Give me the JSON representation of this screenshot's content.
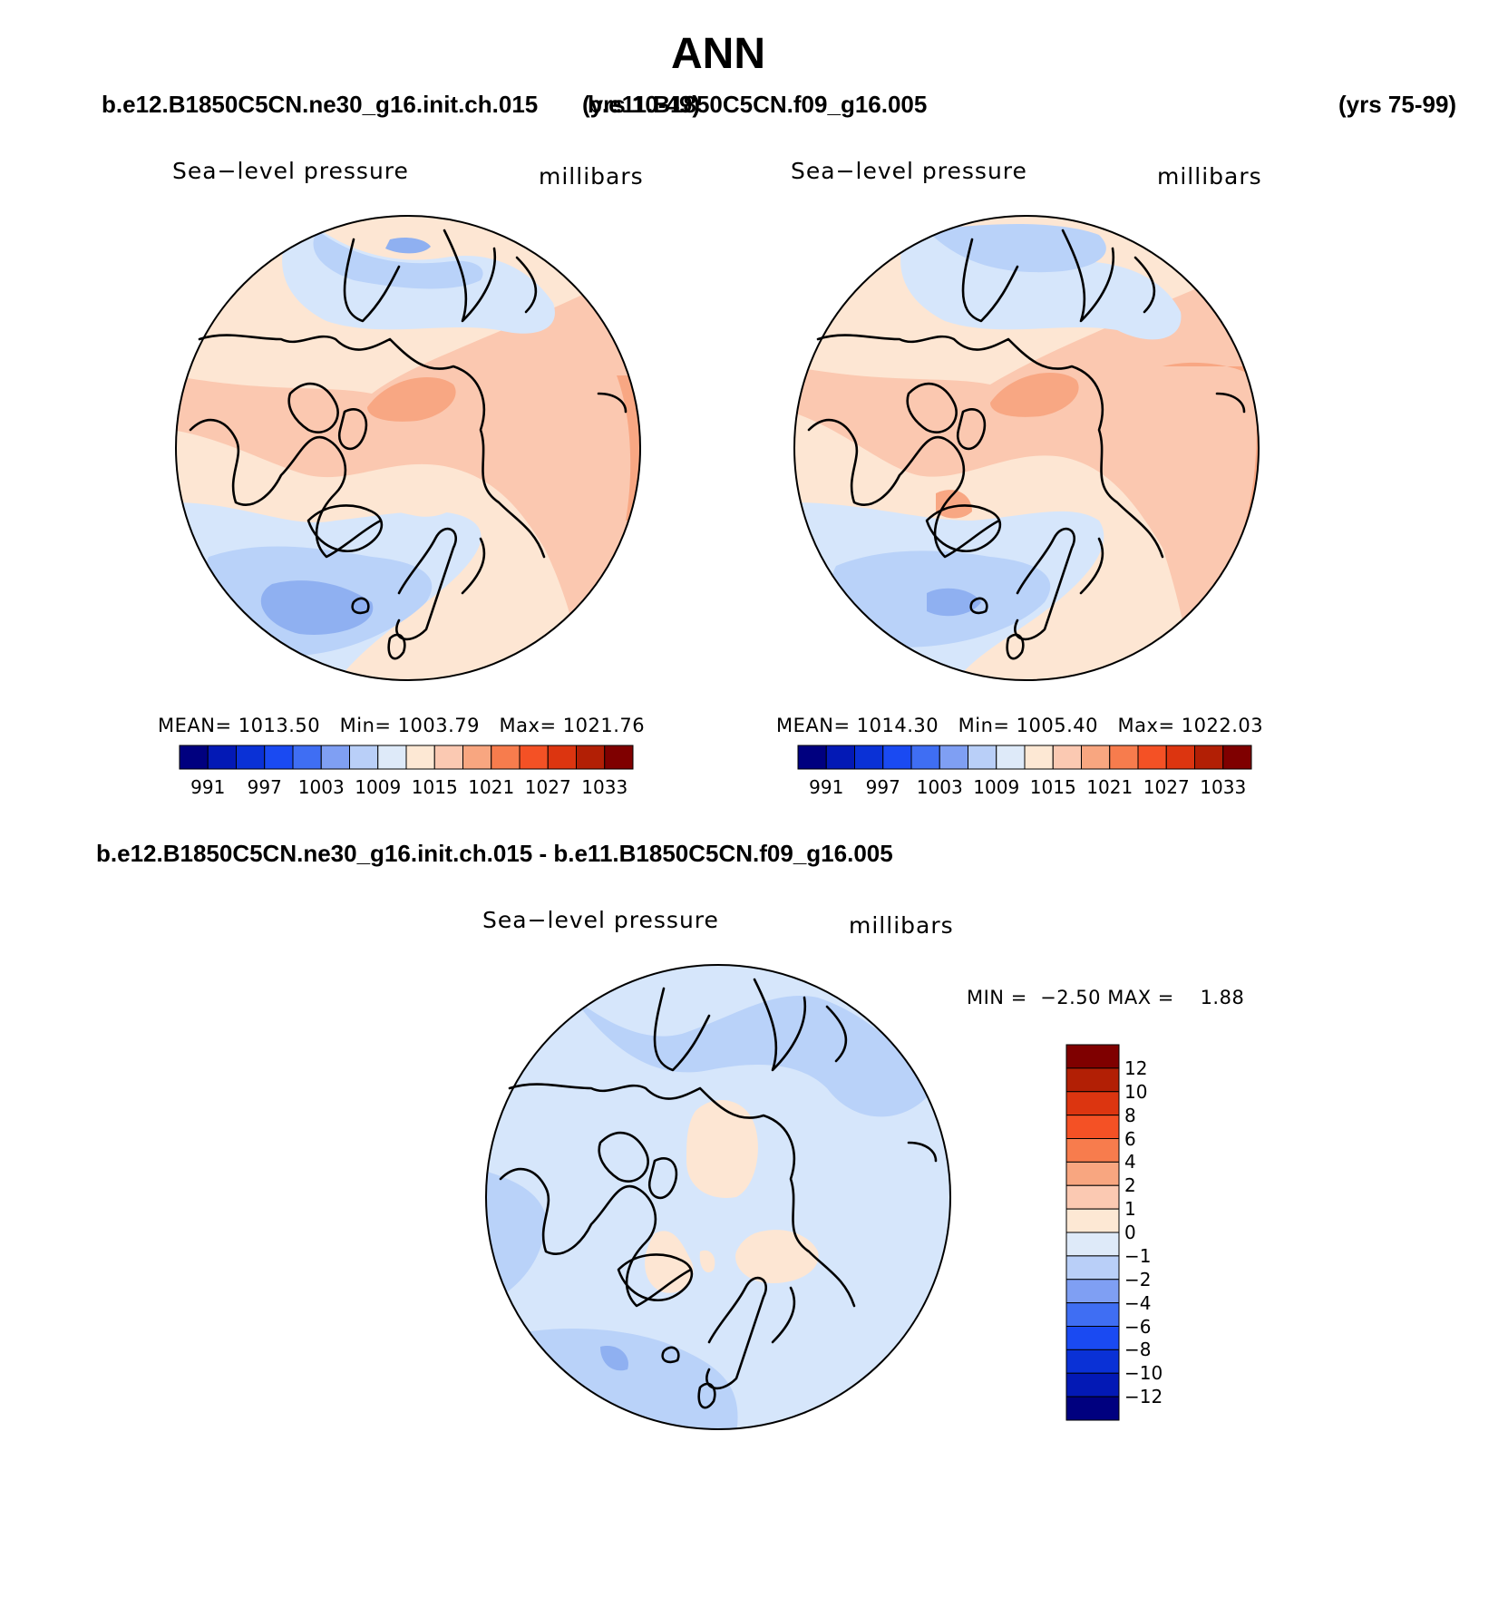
{
  "page": {
    "title": "ANN",
    "case_left": "b.e12.B1850C5CN.ne30_g16.init.ch.015",
    "years_left": "(yrs 10-49)",
    "case_right": "b.e11.B1850C5CN.f09_g16.005",
    "years_right": "(yrs 75-99)",
    "diff_title": "b.e12.B1850C5CN.ne30_g16.init.ch.015 - b.e11.B1850C5CN.f09_g16.005"
  },
  "colors": {
    "land_outline": "#000000",
    "bg_zero_plus": "#fde6d3",
    "bg_1015": "#fde6d3",
    "bg_1018": "#fbc8b0",
    "bg_1021": "#f8a783",
    "bg_1012": "#d6e6fb",
    "bg_1009": "#b9d2f9",
    "bg_1006": "#8fb0f1"
  },
  "panels": [
    {
      "id": "left",
      "variable": "Sea−level pressure",
      "units": "millibars",
      "mean_label": "MEAN=",
      "mean": "1013.50",
      "min_label": "Min=",
      "min": "1003.79",
      "max_label": "Max=",
      "max": "1021.76"
    },
    {
      "id": "right",
      "variable": "Sea−level pressure",
      "units": "millibars",
      "mean_label": "MEAN=",
      "mean": "1014.30",
      "min_label": "Min=",
      "min": "1005.40",
      "max_label": "Max=",
      "max": "1022.03"
    },
    {
      "id": "diff",
      "variable": "Sea−level pressure",
      "units": "millibars",
      "min_label": "MIN =",
      "min": "−2.50",
      "max_label": "MAX =",
      "max": "1.88"
    }
  ],
  "colorbar_abs": {
    "colors": [
      "#00007f",
      "#0319b5",
      "#0a31d6",
      "#1a4af2",
      "#3f6ef3",
      "#7f9ff3",
      "#b9cff8",
      "#deeaf9",
      "#fde8d4",
      "#fbc9b2",
      "#f8a680",
      "#f77c4d",
      "#f45125",
      "#dc3510",
      "#b21f05",
      "#7f0000"
    ],
    "ticks": [
      "991",
      "997",
      "1003",
      "1009",
      "1015",
      "1021",
      "1027",
      "1033"
    ]
  },
  "colorbar_diff": {
    "colors": [
      "#00007f",
      "#0319b5",
      "#0a31d6",
      "#1a4af2",
      "#3f6ef3",
      "#7f9ff3",
      "#b9cff8",
      "#deeaf9",
      "#fde8d4",
      "#fbc9b2",
      "#f8a680",
      "#f77c4d",
      "#f45125",
      "#dc3510",
      "#b21f05",
      "#7f0000"
    ],
    "ticks": [
      "12",
      "10",
      "8",
      "6",
      "4",
      "2",
      "1",
      "0",
      "−1",
      "−2",
      "−4",
      "−6",
      "−8",
      "−10",
      "−12"
    ]
  }
}
